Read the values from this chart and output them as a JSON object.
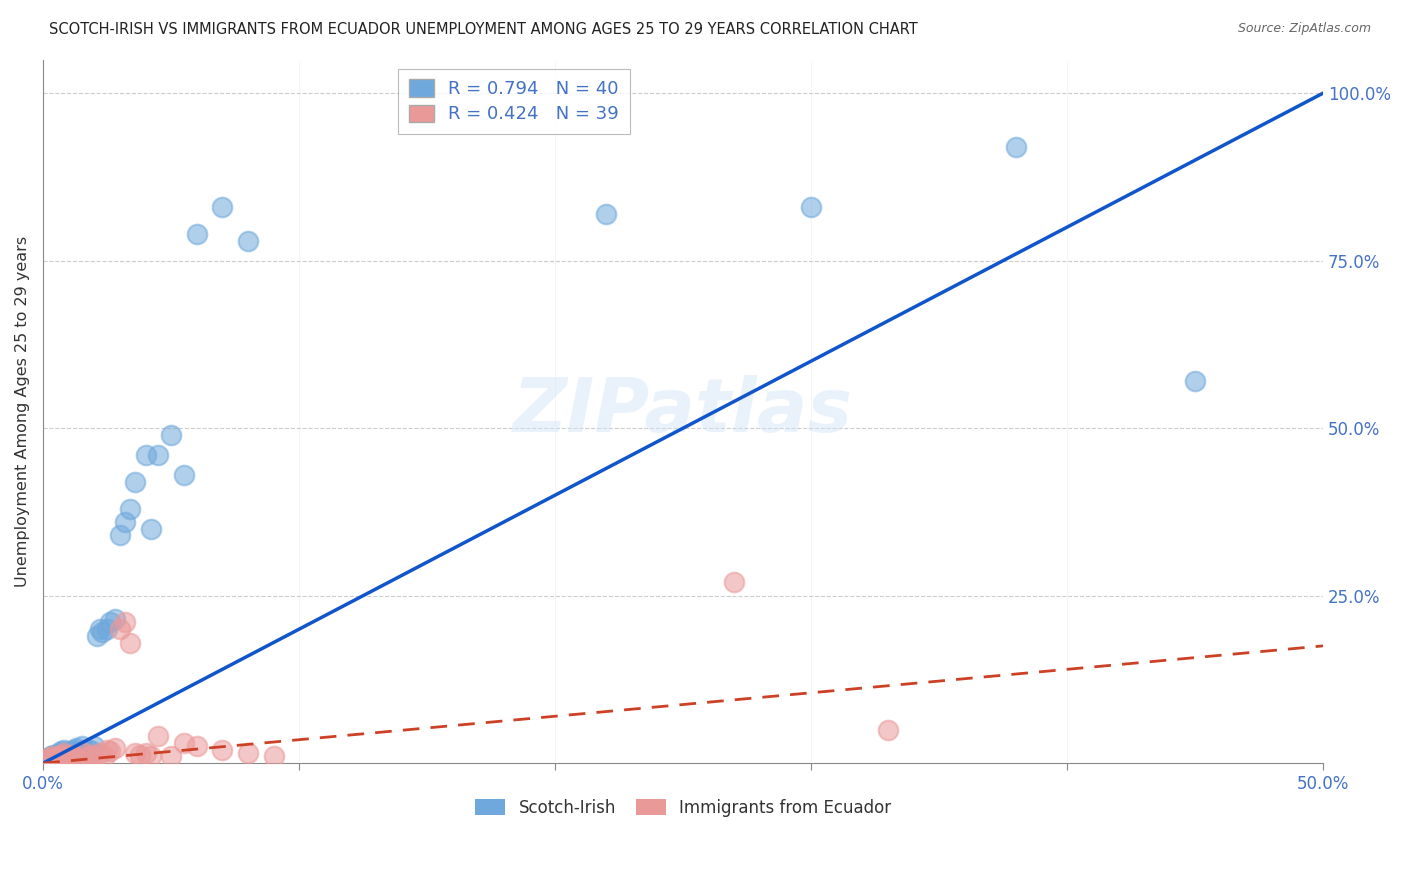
{
  "title": "SCOTCH-IRISH VS IMMIGRANTS FROM ECUADOR UNEMPLOYMENT AMONG AGES 25 TO 29 YEARS CORRELATION CHART",
  "source": "Source: ZipAtlas.com",
  "ylabel": "Unemployment Among Ages 25 to 29 years",
  "watermark": "ZIPatlas",
  "legend_r1": "R = 0.794",
  "legend_n1": "N = 40",
  "legend_r2": "R = 0.424",
  "legend_n2": "N = 39",
  "series1_color": "#6fa8dc",
  "series2_color": "#ea9999",
  "line1_color": "#1155cc",
  "line2_color": "#cc4125",
  "xlim": [
    0,
    0.5
  ],
  "ylim": [
    0,
    1.05
  ],
  "scotch_irish_x": [
    0.001,
    0.002,
    0.003,
    0.004,
    0.005,
    0.006,
    0.007,
    0.008,
    0.009,
    0.01,
    0.011,
    0.012,
    0.013,
    0.015,
    0.016,
    0.018,
    0.019,
    0.02,
    0.021,
    0.022,
    0.023,
    0.025,
    0.026,
    0.028,
    0.03,
    0.032,
    0.034,
    0.036,
    0.04,
    0.042,
    0.045,
    0.05,
    0.055,
    0.06,
    0.07,
    0.08,
    0.22,
    0.3,
    0.38,
    0.45
  ],
  "scotch_irish_y": [
    0.005,
    0.008,
    0.01,
    0.012,
    0.01,
    0.015,
    0.018,
    0.02,
    0.015,
    0.012,
    0.018,
    0.02,
    0.022,
    0.025,
    0.015,
    0.02,
    0.018,
    0.025,
    0.19,
    0.2,
    0.195,
    0.2,
    0.21,
    0.215,
    0.34,
    0.36,
    0.38,
    0.42,
    0.46,
    0.35,
    0.46,
    0.49,
    0.43,
    0.79,
    0.83,
    0.78,
    0.82,
    0.83,
    0.92,
    0.57
  ],
  "ecuador_x": [
    0.001,
    0.002,
    0.003,
    0.004,
    0.005,
    0.006,
    0.007,
    0.008,
    0.009,
    0.01,
    0.011,
    0.012,
    0.013,
    0.015,
    0.016,
    0.018,
    0.019,
    0.02,
    0.022,
    0.024,
    0.025,
    0.026,
    0.028,
    0.03,
    0.032,
    0.034,
    0.036,
    0.038,
    0.04,
    0.042,
    0.045,
    0.05,
    0.055,
    0.06,
    0.07,
    0.08,
    0.09,
    0.27,
    0.33
  ],
  "ecuador_y": [
    0.005,
    0.008,
    0.006,
    0.01,
    0.008,
    0.01,
    0.012,
    0.015,
    0.01,
    0.008,
    0.012,
    0.01,
    0.008,
    0.005,
    0.015,
    0.01,
    0.012,
    0.008,
    0.015,
    0.01,
    0.02,
    0.018,
    0.022,
    0.2,
    0.21,
    0.18,
    0.015,
    0.012,
    0.015,
    0.01,
    0.04,
    0.01,
    0.03,
    0.025,
    0.02,
    0.015,
    0.01,
    0.27,
    0.05
  ],
  "background_color": "#ffffff",
  "title_fontsize": 11,
  "axis_label_color": "#4472c4",
  "grid_color": "#cccccc"
}
